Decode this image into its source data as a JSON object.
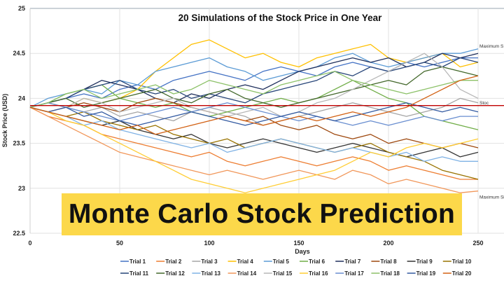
{
  "banner_text": "Monte Carlo Stock Prediction",
  "chart_data": {
    "type": "line",
    "title": "20 Simulations of the Stock Price in One Year",
    "xlabel": "Days",
    "ylabel": "Stock Price (USD)",
    "xlim": [
      0,
      250
    ],
    "ylim": [
      22.5,
      25
    ],
    "xticks": [
      "0",
      "50",
      "100",
      "150",
      "200",
      "250"
    ],
    "yticks": [
      "22.5",
      "23",
      "23.5",
      "24",
      "24.5",
      "25"
    ],
    "grid": true,
    "legend": "bottom",
    "x": [
      0,
      10,
      20,
      30,
      40,
      50,
      60,
      70,
      80,
      90,
      100,
      110,
      120,
      130,
      140,
      150,
      160,
      170,
      180,
      190,
      200,
      210,
      220,
      230,
      240,
      250
    ],
    "series": [
      {
        "name": "Trial 1",
        "color": "#4472C4",
        "values": [
          23.9,
          23.95,
          24.0,
          24.05,
          24.0,
          24.1,
          24.15,
          24.1,
          24.2,
          24.25,
          24.3,
          24.25,
          24.2,
          24.3,
          24.35,
          24.3,
          24.25,
          24.35,
          24.4,
          24.35,
          24.3,
          24.4,
          24.35,
          24.4,
          24.45,
          24.45
        ]
      },
      {
        "name": "Trial 2",
        "color": "#ED7D31",
        "values": [
          23.9,
          23.8,
          23.75,
          23.7,
          23.6,
          23.55,
          23.5,
          23.45,
          23.4,
          23.35,
          23.4,
          23.3,
          23.25,
          23.3,
          23.35,
          23.3,
          23.25,
          23.3,
          23.35,
          23.3,
          23.2,
          23.25,
          23.2,
          23.15,
          23.1,
          23.1
        ]
      },
      {
        "name": "Trial 3",
        "color": "#A5A5A5",
        "values": [
          23.9,
          23.95,
          23.9,
          23.85,
          23.9,
          23.8,
          23.85,
          23.8,
          23.75,
          23.85,
          23.9,
          23.85,
          23.8,
          23.7,
          23.75,
          23.8,
          23.85,
          23.9,
          23.95,
          23.9,
          23.85,
          23.8,
          23.85,
          23.9,
          24.0,
          23.95
        ]
      },
      {
        "name": "Trial 4",
        "color": "#FFC000",
        "values": [
          23.9,
          23.95,
          23.9,
          24.0,
          23.95,
          24.0,
          24.1,
          24.3,
          24.45,
          24.6,
          24.65,
          24.55,
          24.45,
          24.5,
          24.4,
          24.35,
          24.45,
          24.5,
          24.55,
          24.6,
          24.45,
          24.4,
          24.45,
          24.5,
          24.35,
          24.4
        ]
      },
      {
        "name": "Trial 5",
        "color": "#5B9BD5",
        "values": [
          23.9,
          24.0,
          24.05,
          24.1,
          24.05,
          24.2,
          24.15,
          24.3,
          24.35,
          24.4,
          24.45,
          24.35,
          24.3,
          24.2,
          24.25,
          24.3,
          24.35,
          24.45,
          24.5,
          24.4,
          24.35,
          24.4,
          24.45,
          24.5,
          24.5,
          24.55
        ]
      },
      {
        "name": "Trial 6",
        "color": "#70AD47",
        "values": [
          23.9,
          23.95,
          24.05,
          24.1,
          24.15,
          24.0,
          23.95,
          23.9,
          23.95,
          23.85,
          23.8,
          23.85,
          23.9,
          23.95,
          24.0,
          23.95,
          24.0,
          24.1,
          24.2,
          24.1,
          24.0,
          23.95,
          23.8,
          23.75,
          23.7,
          23.65
        ]
      },
      {
        "name": "Trial 7",
        "color": "#1F2F5C",
        "values": [
          23.9,
          23.95,
          24.0,
          24.1,
          24.2,
          24.15,
          24.1,
          24.0,
          23.95,
          24.05,
          24.0,
          24.1,
          24.15,
          24.1,
          24.2,
          24.3,
          24.35,
          24.4,
          24.45,
          24.4,
          24.45,
          24.35,
          24.4,
          24.5,
          24.45,
          24.5
        ]
      },
      {
        "name": "Trial 8",
        "color": "#9E480E",
        "values": [
          23.9,
          23.85,
          23.9,
          23.95,
          23.9,
          23.85,
          23.95,
          24.0,
          23.95,
          23.9,
          23.85,
          23.8,
          23.75,
          23.8,
          23.7,
          23.65,
          23.7,
          23.6,
          23.55,
          23.6,
          23.5,
          23.55,
          23.5,
          23.45,
          23.5,
          23.45
        ]
      },
      {
        "name": "Trial 9",
        "color": "#333333",
        "values": [
          23.9,
          23.85,
          23.8,
          23.75,
          23.7,
          23.75,
          23.65,
          23.6,
          23.55,
          23.6,
          23.5,
          23.45,
          23.5,
          23.55,
          23.5,
          23.45,
          23.4,
          23.45,
          23.5,
          23.45,
          23.4,
          23.35,
          23.4,
          23.45,
          23.35,
          23.4
        ]
      },
      {
        "name": "Trial 10",
        "color": "#997300",
        "values": [
          23.9,
          23.85,
          23.8,
          23.85,
          23.75,
          23.7,
          23.65,
          23.7,
          23.6,
          23.55,
          23.5,
          23.55,
          23.45,
          23.5,
          23.55,
          23.5,
          23.45,
          23.4,
          23.45,
          23.5,
          23.4,
          23.35,
          23.3,
          23.2,
          23.15,
          23.1
        ]
      },
      {
        "name": "Trial 11",
        "color": "#264478",
        "values": [
          23.9,
          23.95,
          24.0,
          24.1,
          24.15,
          24.2,
          24.1,
          24.05,
          24.1,
          24.0,
          24.05,
          24.0,
          23.95,
          24.05,
          24.1,
          24.15,
          24.2,
          24.3,
          24.25,
          24.35,
          24.3,
          24.35,
          24.4,
          24.35,
          24.45,
          24.4
        ]
      },
      {
        "name": "Trial 12",
        "color": "#43682B",
        "values": [
          23.9,
          23.95,
          24.0,
          23.9,
          23.95,
          24.0,
          24.05,
          24.1,
          24.0,
          23.95,
          24.05,
          24.1,
          24.0,
          23.95,
          23.9,
          23.95,
          24.0,
          24.05,
          24.1,
          24.15,
          24.2,
          24.15,
          24.3,
          24.35,
          24.3,
          24.25
        ]
      },
      {
        "name": "Trial 13",
        "color": "#7FB2E5",
        "values": [
          23.9,
          23.85,
          23.8,
          23.7,
          23.75,
          23.65,
          23.6,
          23.55,
          23.5,
          23.45,
          23.5,
          23.4,
          23.45,
          23.5,
          23.55,
          23.5,
          23.45,
          23.4,
          23.45,
          23.4,
          23.35,
          23.4,
          23.3,
          23.35,
          23.3,
          23.3
        ]
      },
      {
        "name": "Trial 14",
        "color": "#F1975A",
        "values": [
          23.9,
          23.8,
          23.7,
          23.6,
          23.5,
          23.4,
          23.35,
          23.3,
          23.25,
          23.2,
          23.15,
          23.2,
          23.15,
          23.1,
          23.15,
          23.2,
          23.15,
          23.1,
          23.2,
          23.15,
          23.05,
          23.1,
          23.05,
          23.0,
          22.95,
          22.97
        ]
      },
      {
        "name": "Trial 15",
        "color": "#B7B7B7",
        "values": [
          23.9,
          23.95,
          23.9,
          24.0,
          23.95,
          23.85,
          23.9,
          23.95,
          24.0,
          23.9,
          23.85,
          23.8,
          23.85,
          23.9,
          23.8,
          23.85,
          23.95,
          24.0,
          24.1,
          24.2,
          24.3,
          24.4,
          24.5,
          24.35,
          24.1,
          24.0
        ]
      },
      {
        "name": "Trial 16",
        "color": "#FFCD33",
        "values": [
          23.9,
          23.85,
          23.75,
          23.7,
          23.6,
          23.5,
          23.4,
          23.3,
          23.2,
          23.1,
          23.05,
          23.0,
          22.95,
          23.0,
          23.05,
          23.1,
          23.15,
          23.2,
          23.3,
          23.4,
          23.35,
          23.45,
          23.5,
          23.45,
          23.5,
          23.55
        ]
      },
      {
        "name": "Trial 17",
        "color": "#698ED0",
        "values": [
          23.9,
          23.95,
          23.9,
          23.85,
          23.8,
          23.75,
          23.8,
          23.85,
          23.9,
          23.85,
          23.9,
          23.95,
          23.9,
          23.85,
          23.8,
          23.75,
          23.8,
          23.75,
          23.7,
          23.75,
          23.7,
          23.75,
          23.8,
          23.75,
          23.8,
          23.8
        ]
      },
      {
        "name": "Trial 18",
        "color": "#8CC168",
        "values": [
          23.9,
          23.95,
          24.05,
          24.1,
          24.0,
          24.05,
          24.1,
          24.15,
          24.05,
          24.1,
          24.2,
          24.15,
          24.1,
          24.05,
          24.15,
          24.2,
          24.25,
          24.3,
          24.2,
          24.15,
          24.1,
          24.05,
          24.1,
          24.15,
          24.2,
          24.2
        ]
      },
      {
        "name": "Trial 19",
        "color": "#335AA1",
        "values": [
          23.9,
          23.85,
          23.9,
          23.8,
          23.85,
          23.75,
          23.7,
          23.75,
          23.8,
          23.85,
          23.8,
          23.75,
          23.7,
          23.75,
          23.8,
          23.85,
          23.8,
          23.75,
          23.8,
          23.85,
          23.9,
          23.95,
          23.9,
          23.85,
          23.9,
          23.85
        ]
      },
      {
        "name": "Trial 20",
        "color": "#D26012",
        "values": [
          23.9,
          23.85,
          23.8,
          23.75,
          23.7,
          23.65,
          23.7,
          23.6,
          23.65,
          23.7,
          23.75,
          23.8,
          23.75,
          23.7,
          23.75,
          23.8,
          23.75,
          23.8,
          23.85,
          23.8,
          23.85,
          23.9,
          24.0,
          24.1,
          24.2,
          24.25
        ]
      }
    ],
    "reference_line": {
      "value": 23.92,
      "color": "#C00000"
    },
    "annotations": [
      {
        "text": "Maximum S",
        "x": 250,
        "y": 24.58
      },
      {
        "text": "Stoc",
        "x": 250,
        "y": 23.95
      },
      {
        "text": "Maximum Sim",
        "x": 250,
        "y": 22.9
      }
    ]
  }
}
